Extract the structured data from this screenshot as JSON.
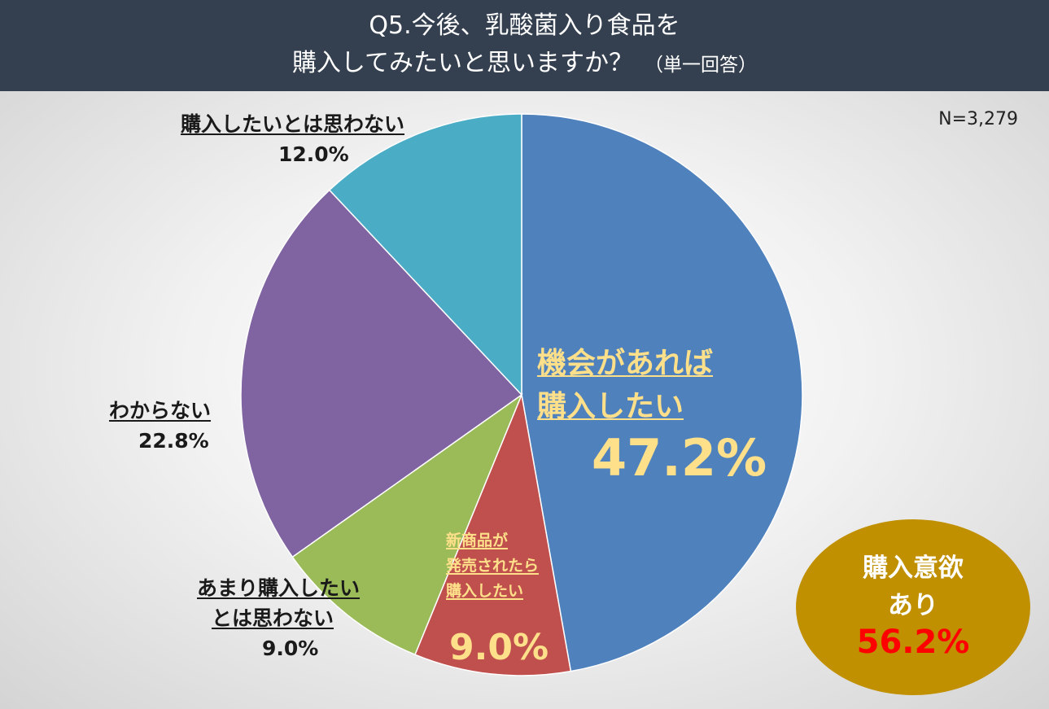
{
  "title": {
    "line1": "Q5.今後、乳酸菌入り食品を",
    "line2": "購入してみたいと思いますか？",
    "suffix": "（単一回答）"
  },
  "sample_size": "N=3,279",
  "chart_data": {
    "type": "pie",
    "start_angle_deg": 0,
    "direction": "clockwise",
    "slices": [
      {
        "label": "機会があれば購入したい",
        "value": 47.2,
        "value_text": "47.2%",
        "color": "#4f81bd"
      },
      {
        "label": "新商品が発売されたら購入したい",
        "value": 9.0,
        "value_text": "9.0%",
        "color": "#c0504d"
      },
      {
        "label": "あまり購入したいとは思わない",
        "value": 9.0,
        "value_text": "9.0%",
        "color": "#9bbb59"
      },
      {
        "label": "わからない",
        "value": 22.8,
        "value_text": "22.8%",
        "color": "#8064a2"
      },
      {
        "label": "購入したいとは思わない",
        "value": 12.0,
        "value_text": "12.0%",
        "color": "#4bacc6"
      }
    ]
  },
  "labels": {
    "chance": {
      "line1": "機会があれば",
      "line2": "購入したい"
    },
    "new_product": {
      "line1": "新商品が",
      "line2": "発売されたら",
      "line3": "購入したい"
    },
    "not_much": {
      "line1": "あまり購入したい",
      "line2": "とは思わない"
    },
    "unknown": {
      "line1": "わからない"
    },
    "no_buy": {
      "line1": "購入したいとは思わない"
    }
  },
  "intent_badge": {
    "line1": "購入意欲",
    "line2": "あり",
    "value": "56.2%",
    "color": "#c09000",
    "value_color": "#ff0000"
  }
}
